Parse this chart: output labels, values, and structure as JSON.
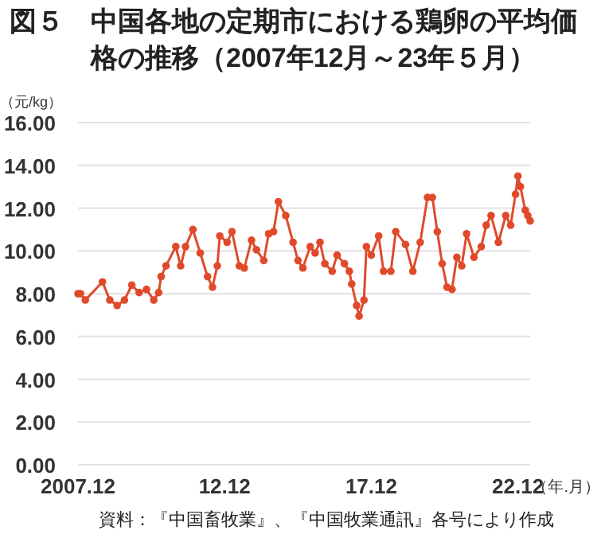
{
  "chart_data": {
    "type": "line",
    "title": "図５　中国各地の定期市における鶏卵の平均価格の推移（2007年12月～23年５月）",
    "ylabel": "（元/kg）",
    "xlabel": "（年.月）",
    "annotations": [
      "資料：『中国畜牧業』、『中国牧業通訊』各号により作成"
    ],
    "xlim": [
      "2007-12",
      "2023-05"
    ],
    "xticks": [
      {
        "value": "2007-12",
        "label": "2007.12"
      },
      {
        "value": "2012-12",
        "label": "12.12"
      },
      {
        "value": "2017-12",
        "label": "17.12"
      },
      {
        "value": "2022-12",
        "label": "22.12"
      }
    ],
    "ylim": [
      0,
      16
    ],
    "yticks": [
      {
        "value": 0,
        "label": "0.00"
      },
      {
        "value": 2,
        "label": "2.00"
      },
      {
        "value": 4,
        "label": "4.00"
      },
      {
        "value": 6,
        "label": "6.00"
      },
      {
        "value": 8,
        "label": "8.00"
      },
      {
        "value": 10,
        "label": "10.00"
      },
      {
        "value": 12,
        "label": "12.00"
      },
      {
        "value": 14,
        "label": "14.00"
      },
      {
        "value": 16,
        "label": "16.00"
      }
    ],
    "grid": "y",
    "marker": "circle",
    "line_style": "solid",
    "x": [
      "2007-12",
      "2008-01",
      "2008-03",
      "2008-10",
      "2009-01",
      "2009-04",
      "2009-07",
      "2009-10",
      "2010-01",
      "2010-04",
      "2010-07",
      "2010-09",
      "2010-10",
      "2010-12",
      "2011-04",
      "2011-06",
      "2011-08",
      "2011-11",
      "2012-02",
      "2012-05",
      "2012-07",
      "2012-09",
      "2012-10",
      "2013-01",
      "2013-03",
      "2013-06",
      "2013-08",
      "2013-11",
      "2014-01",
      "2014-04",
      "2014-06",
      "2014-08",
      "2014-10",
      "2015-01",
      "2015-04",
      "2015-06",
      "2015-08",
      "2015-11",
      "2016-01",
      "2016-03",
      "2016-05",
      "2016-08",
      "2016-10",
      "2017-01",
      "2017-03",
      "2017-04",
      "2017-06",
      "2017-07",
      "2017-09",
      "2017-10",
      "2017-12",
      "2018-03",
      "2018-05",
      "2018-08",
      "2018-10",
      "2019-02",
      "2019-05",
      "2019-08",
      "2019-11",
      "2020-01",
      "2020-03",
      "2020-05",
      "2020-07",
      "2020-09",
      "2020-11",
      "2021-01",
      "2021-03",
      "2021-06",
      "2021-09",
      "2021-11",
      "2022-01",
      "2022-04",
      "2022-07",
      "2022-09",
      "2022-11",
      "2022-12",
      "2023-01",
      "2023-03",
      "2023-04",
      "2023-05"
    ],
    "series": [
      {
        "color": "#e04a2a",
        "values": [
          8.0,
          8.0,
          7.7,
          8.55,
          7.7,
          7.45,
          7.7,
          8.4,
          8.05,
          8.2,
          7.7,
          8.05,
          8.8,
          9.3,
          10.2,
          9.3,
          10.2,
          11.0,
          9.9,
          8.8,
          8.3,
          9.3,
          10.7,
          10.4,
          10.9,
          9.3,
          9.2,
          10.5,
          10.05,
          9.55,
          10.8,
          10.9,
          12.3,
          11.65,
          10.4,
          9.55,
          9.2,
          10.2,
          9.9,
          10.4,
          9.4,
          9.05,
          9.8,
          9.4,
          9.05,
          8.45,
          7.45,
          6.95,
          7.7,
          10.2,
          9.8,
          10.7,
          9.05,
          9.05,
          10.9,
          10.3,
          9.05,
          10.4,
          12.5,
          12.5,
          10.9,
          9.4,
          8.3,
          8.2,
          9.7,
          9.3,
          10.8,
          9.7,
          10.2,
          11.2,
          11.65,
          10.4,
          11.65,
          11.2,
          12.65,
          13.5,
          13.0,
          11.9,
          11.65,
          11.4
        ]
      }
    ]
  }
}
